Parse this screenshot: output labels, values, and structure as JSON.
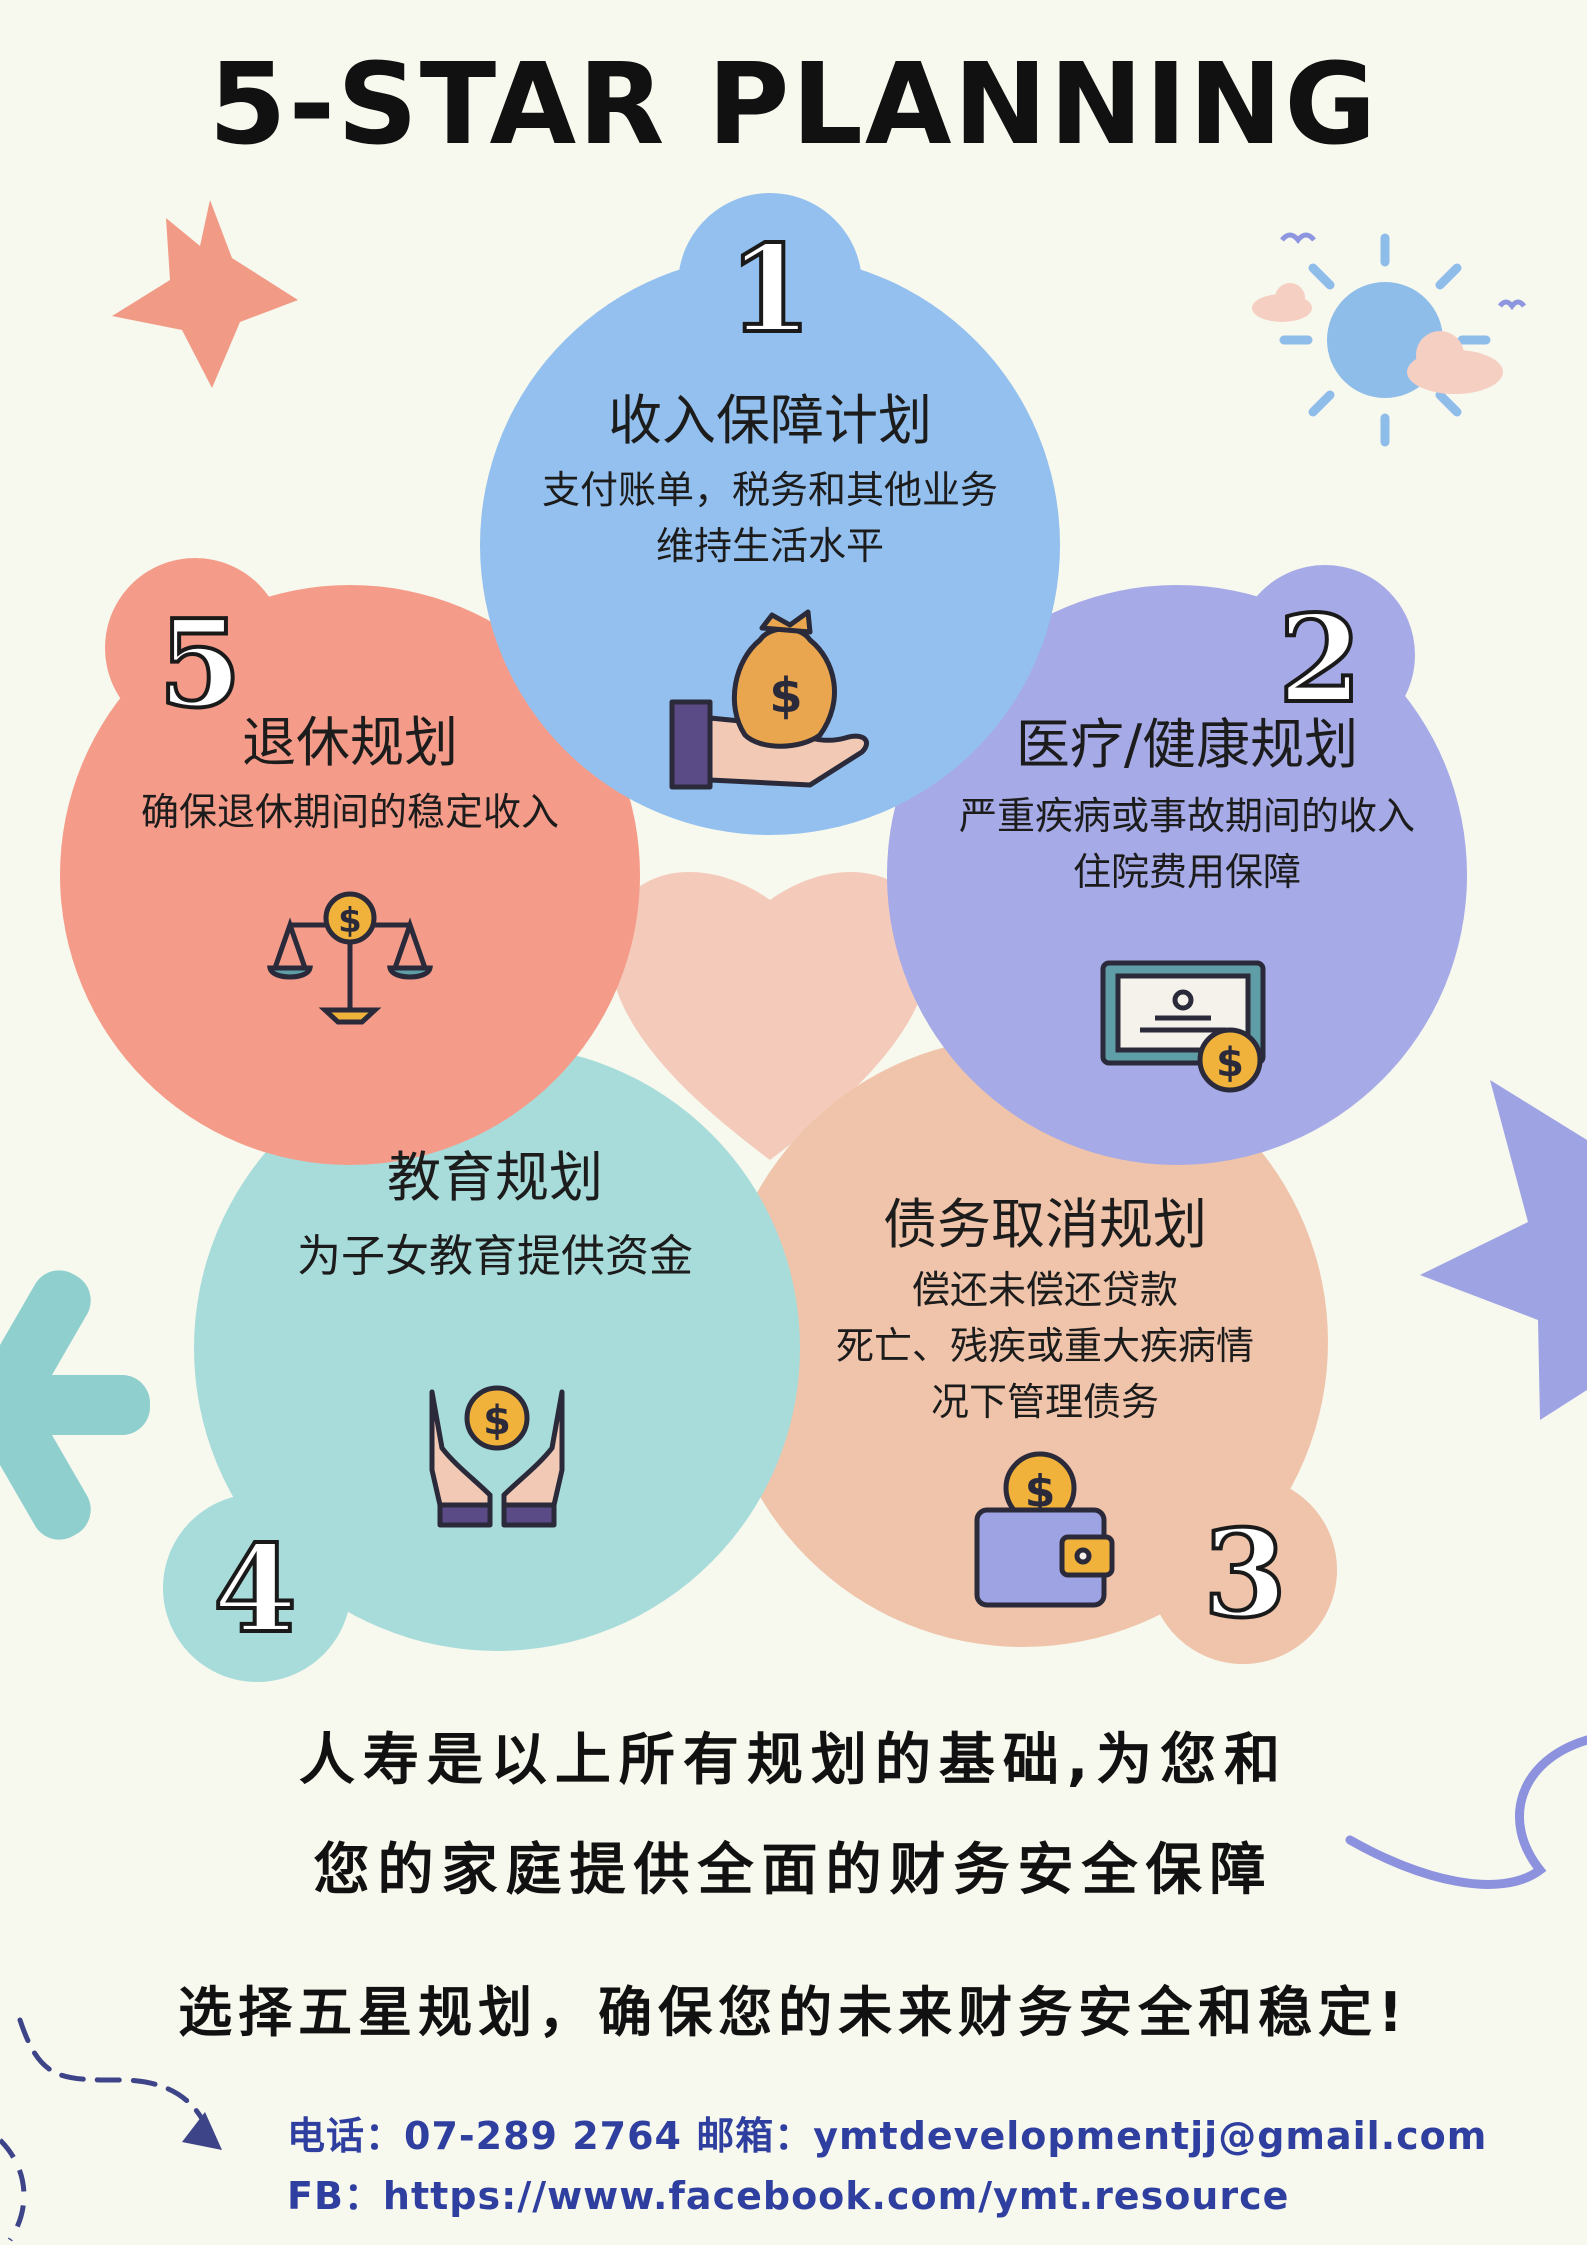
{
  "header": {
    "title": "5-STAR PLANNING"
  },
  "plans": [
    {
      "number": "1",
      "title": "收入保障计划",
      "lines": [
        "支付账单，税务和其他业务",
        "维持生活水平"
      ],
      "icon": "money-bag-hand-icon",
      "color": "#93c0ee"
    },
    {
      "number": "2",
      "title": "医疗/健康规划",
      "lines": [
        "严重疾病或事故期间的收入",
        "住院费用保障"
      ],
      "icon": "certificate-coin-icon",
      "color": "#a6aae6"
    },
    {
      "number": "3",
      "title": "债务取消规划",
      "lines": [
        "偿还未偿还贷款",
        "死亡、残疾或重大疾病情",
        "况下管理债务"
      ],
      "icon": "wallet-coin-icon",
      "color": "#efc4aa"
    },
    {
      "number": "4",
      "title": "教育规划",
      "lines": [
        "为子女教育提供资金"
      ],
      "icon": "hands-coin-icon",
      "color": "#a8dcdb"
    },
    {
      "number": "5",
      "title": "退休规划",
      "lines": [
        "确保退休期间的稳定收入"
      ],
      "icon": "balance-scale-coin-icon",
      "color": "#f49c89"
    }
  ],
  "footer": {
    "line1": "人寿是以上所有规划的基础,为您和",
    "line2": "您的家庭提供全面的财务安全保障",
    "line3": "选择五星规划，确保您的未来财务安全和稳定!",
    "contact_line": "电话：07-289 2764 邮箱：ymtdevelopmentjj@gmail.com",
    "fb_line": "FB：https://www.facebook.com/ymt.resource"
  },
  "colors": {
    "background": "#f7f8ee",
    "blue": "#93c0ee",
    "purple": "#a6aae6",
    "peach": "#efc4aa",
    "teal": "#a8dcdb",
    "coral": "#f49c89",
    "heart": "#f4cbbb",
    "contact_text": "#2f3fa0"
  }
}
